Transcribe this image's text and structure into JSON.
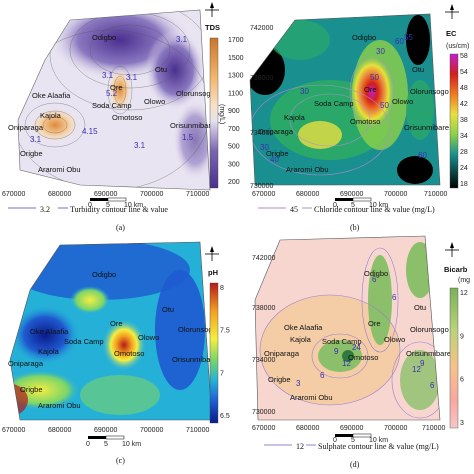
{
  "panels": [
    {
      "id": "a",
      "caption": "(a)",
      "legend_title": "TDS",
      "unit": "(mg/L)",
      "ticks": [
        "1700",
        "1500",
        "1300",
        "1100",
        "900",
        "700",
        "500",
        "300",
        "200"
      ],
      "gradient": [
        "#c8762a",
        "#f2b26a",
        "#f7e2c7",
        "#e7e2ee",
        "#b7aad3",
        "#7b66b0",
        "#4b2f8f"
      ],
      "contour_legend_value": "3.2",
      "contour_legend_text": "Turbidity contour line & value",
      "contour_labels": [
        "3.1",
        "3.1",
        "3.1",
        "4.15",
        "5.2",
        "1.5",
        "3.1",
        "3.1"
      ],
      "x_ticks": [
        "670000",
        "680000",
        "690000",
        "700000",
        "710000"
      ],
      "y_ticks": [],
      "scale_labels": [
        "0",
        "5",
        "10 km"
      ]
    },
    {
      "id": "b",
      "caption": "(b)",
      "legend_title": "EC",
      "unit": "(us/cm)",
      "ticks": [
        "58",
        "54",
        "48",
        "42",
        "38",
        "34",
        "28",
        "24",
        "18"
      ],
      "gradient": [
        "#c21fd1",
        "#d11f1f",
        "#f07a20",
        "#e8e040",
        "#8dcf4a",
        "#2aa86a",
        "#1a8f8f",
        "#0a3b3b",
        "#000000"
      ],
      "contour_legend_value": "45",
      "contour_legend_text": "Chloride contour line & value (mg/L)",
      "contour_labels": [
        "60",
        "30",
        "30",
        "30",
        "40",
        "50",
        "50",
        "60",
        "55"
      ],
      "x_ticks": [
        "670000",
        "680000",
        "690000",
        "700000",
        "710000"
      ],
      "y_ticks": [
        "742000",
        "738000",
        "734000",
        "730000"
      ],
      "scale_labels": [
        "0",
        "5",
        "10 km"
      ]
    },
    {
      "id": "c",
      "caption": "(c)",
      "legend_title": "pH",
      "unit": "",
      "ticks": [
        "8",
        "7.5",
        "7",
        "6.5"
      ],
      "gradient": [
        "#b41a1a",
        "#f2a020",
        "#f5ee40",
        "#7ad46a",
        "#25b0d8",
        "#1f5ad0",
        "#0a1a8a"
      ],
      "contour_legend_value": "",
      "contour_legend_text": "",
      "contour_labels": [],
      "x_ticks": [
        "670000",
        "680000",
        "690000",
        "700000",
        "710000"
      ],
      "y_ticks": [],
      "scale_labels": [
        "0",
        "5",
        "10 km"
      ]
    },
    {
      "id": "d",
      "caption": "(d)",
      "legend_title": "Bicarb",
      "unit": "(mg",
      "ticks": [
        "12",
        "9",
        "6",
        "3"
      ],
      "gradient": [
        "#7cb05a",
        "#b8d27a",
        "#f4c48a",
        "#f8a8a0",
        "#f3c8c8"
      ],
      "contour_legend_value": "12",
      "contour_legend_text": "Sulphate contour line & value (mg/L)",
      "contour_labels": [
        "6",
        "6",
        "9",
        "12",
        "6",
        "24",
        "9",
        "6",
        "12",
        "3"
      ],
      "x_ticks": [
        "670000",
        "680000",
        "690000",
        "700000",
        "710000"
      ],
      "y_ticks": [
        "742000",
        "738000",
        "734000",
        "730000"
      ],
      "scale_labels": [
        "0",
        "5",
        "10 km"
      ]
    }
  ],
  "towns": [
    "Odigbo",
    "Otu",
    "Ore",
    "Oke Alaafia",
    "Olowo",
    "Olorunsogo",
    "Soda Camp",
    "Kajola",
    "Omotoso",
    "Oniparaga",
    "Orisunmibare",
    "Origbe",
    "Araromi Obu"
  ],
  "north_label": "N"
}
